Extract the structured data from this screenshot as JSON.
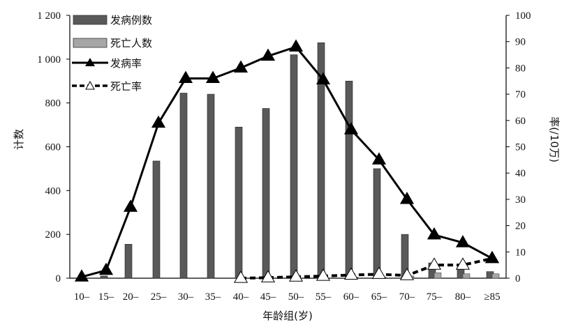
{
  "chart_data": {
    "type": "bar",
    "categories": [
      "10–",
      "15–",
      "20–",
      "25–",
      "30–",
      "35–",
      "40–",
      "45–",
      "50–",
      "55–",
      "60–",
      "65–",
      "70–",
      "75–",
      "80–",
      "≥85"
    ],
    "xlabel": "年龄组(岁)",
    "ylabel": "计数",
    "y2label": "率(/10万)",
    "ylim": [
      0,
      1200
    ],
    "y2lim": [
      0,
      100
    ],
    "yticks": [
      "0",
      "200",
      "400",
      "600",
      "800",
      "1 000",
      "1 200"
    ],
    "y2ticks": [
      "0",
      "10",
      "20",
      "30",
      "40",
      "50",
      "60",
      "70",
      "80",
      "90",
      "100"
    ],
    "grid": false,
    "legend_position": "top-left",
    "series": [
      {
        "name": "发病例数",
        "kind": "bar",
        "axis": "left",
        "color": "#595959",
        "values": [
          0,
          10,
          155,
          535,
          845,
          840,
          690,
          775,
          1020,
          1075,
          900,
          500,
          200,
          70,
          50,
          30
        ]
      },
      {
        "name": "死亡人数",
        "kind": "bar",
        "axis": "left",
        "color": "#a6a6a6",
        "values": [
          0,
          0,
          0,
          0,
          0,
          0,
          0,
          0,
          0,
          0,
          5,
          5,
          10,
          25,
          20,
          20
        ]
      },
      {
        "name": "发病率",
        "kind": "line",
        "axis": "right",
        "color": "#000000",
        "values": [
          0.5,
          3,
          27,
          59,
          76,
          76,
          80,
          84.5,
          88,
          75.5,
          56.5,
          45,
          30,
          16.5,
          13.5,
          7.5
        ]
      },
      {
        "name": "死亡率",
        "kind": "dashed-line",
        "axis": "right",
        "color": "#000000",
        "values": [
          null,
          null,
          null,
          null,
          null,
          null,
          0,
          0.2,
          0.5,
          0.8,
          1.2,
          1.5,
          1,
          5,
          5,
          7.5
        ]
      }
    ]
  }
}
